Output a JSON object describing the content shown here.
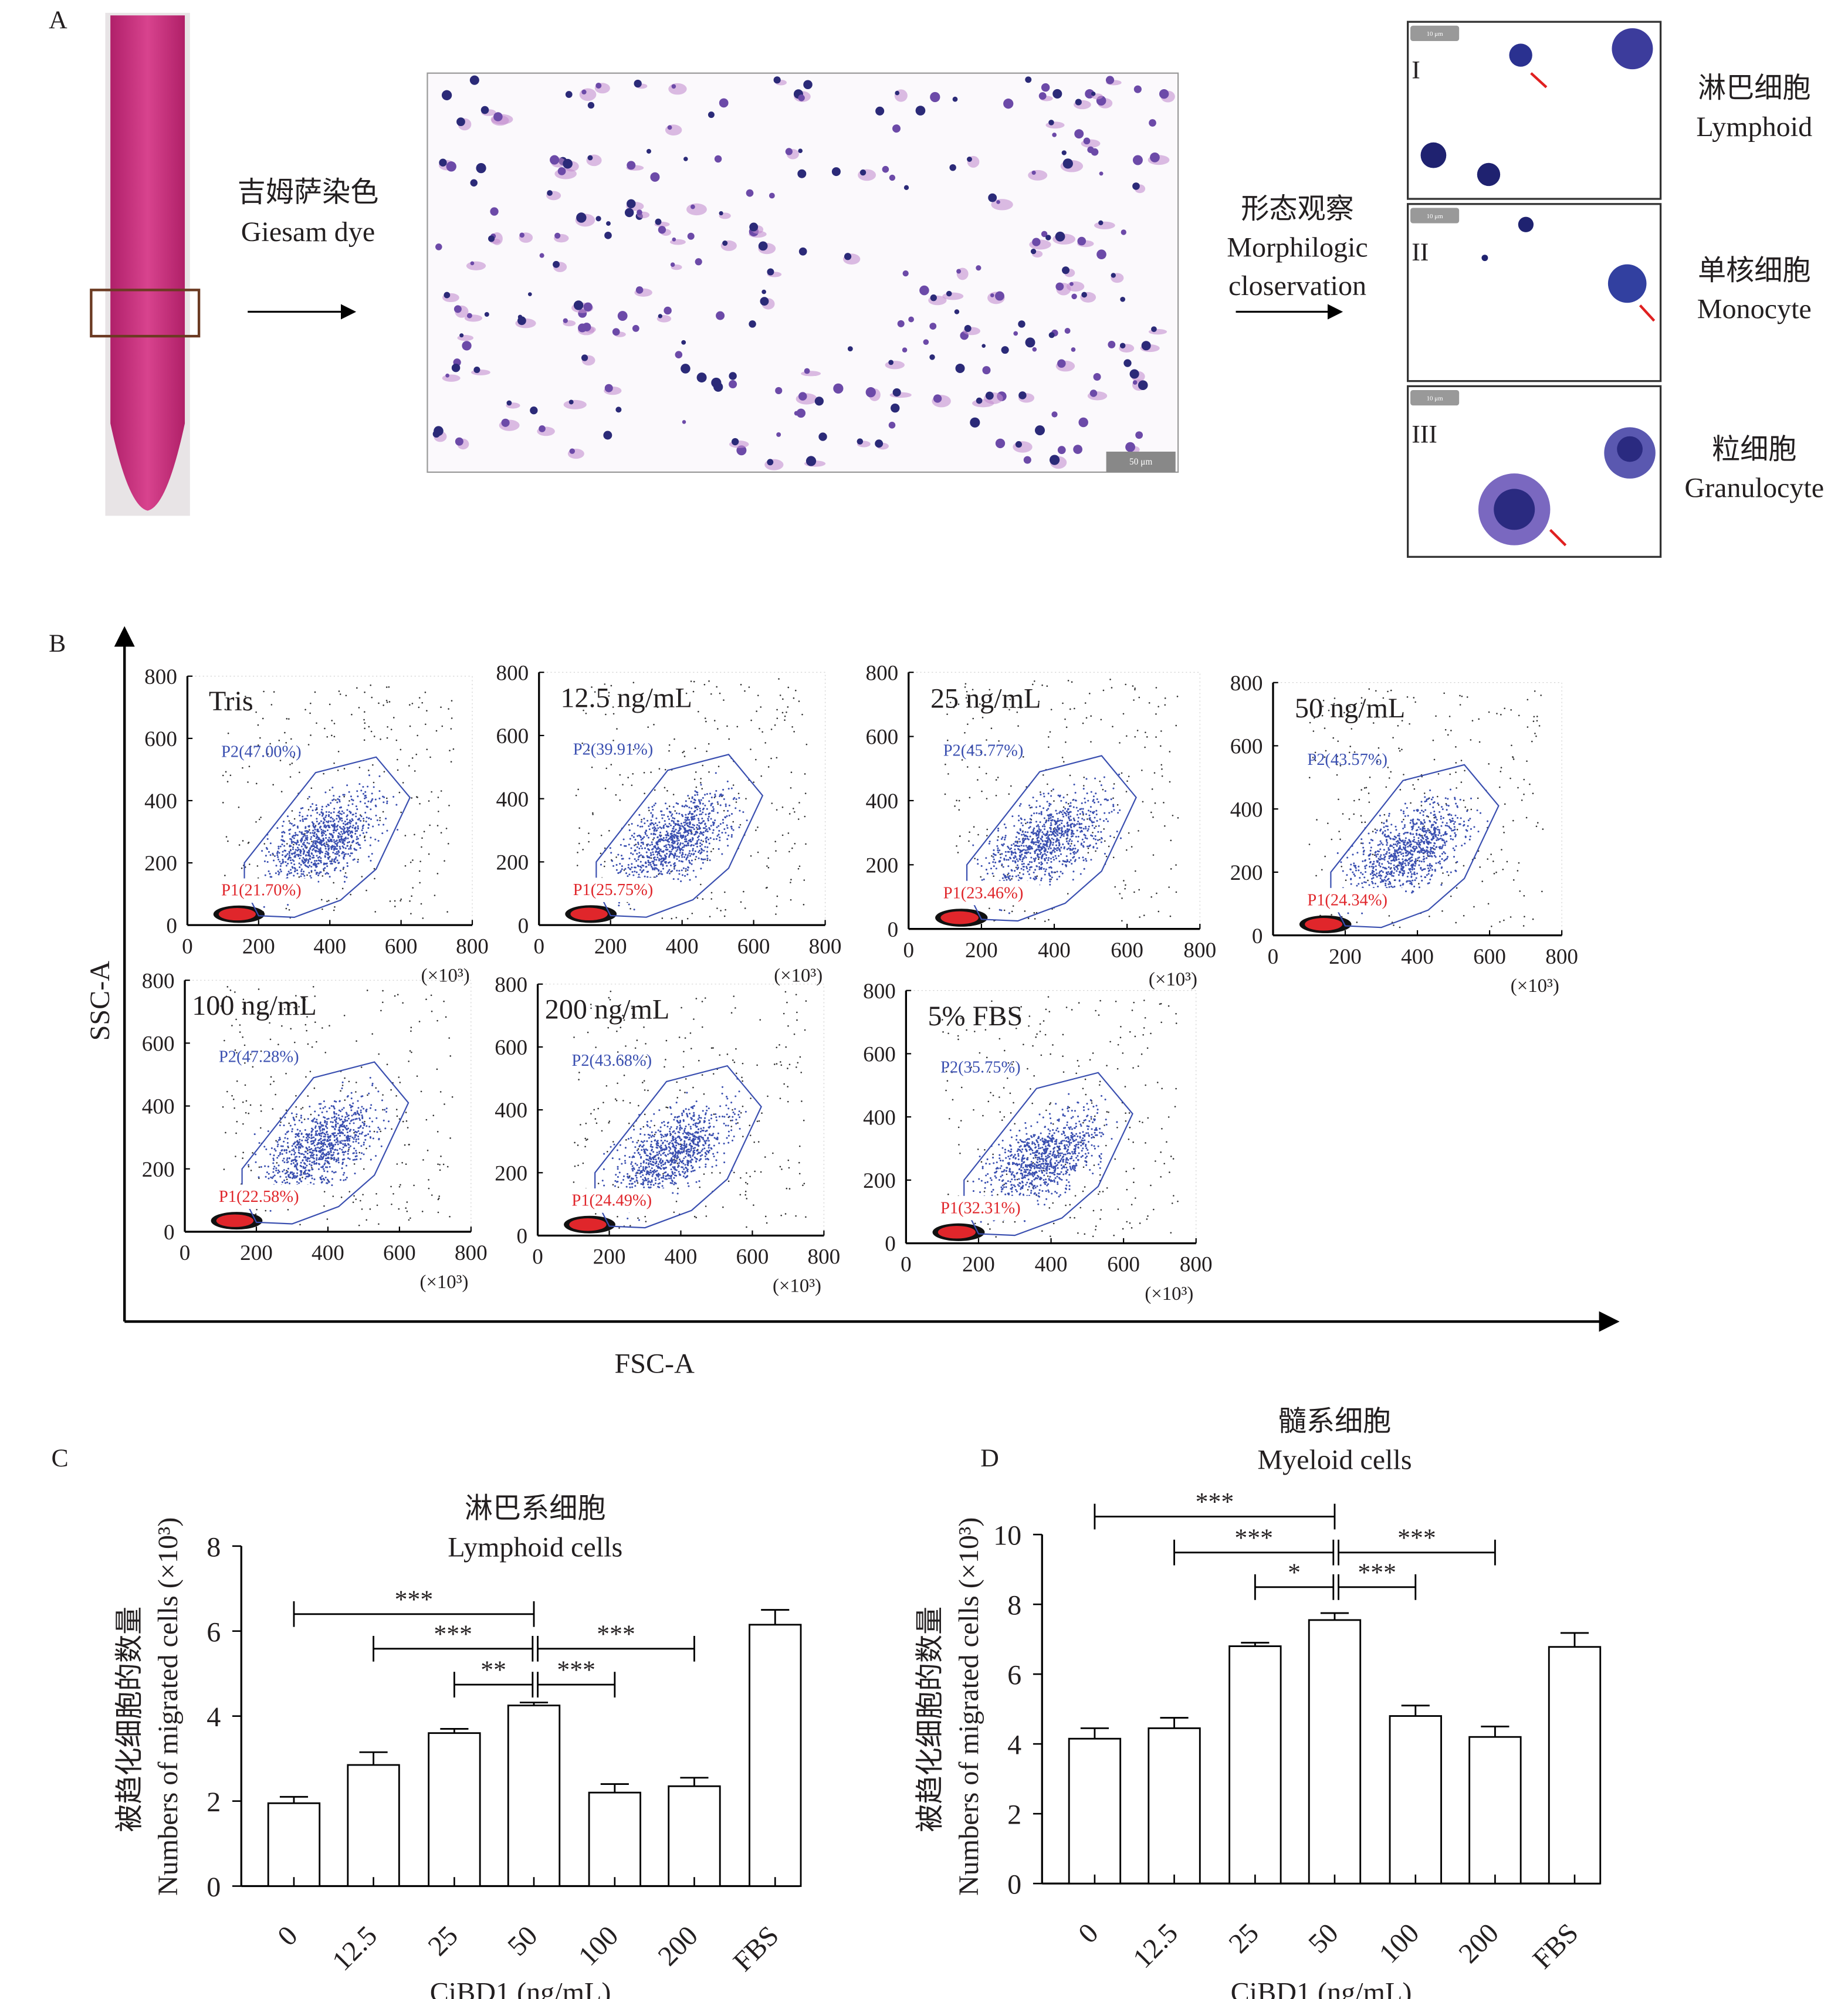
{
  "panel_a": {
    "letter": "A",
    "stain_cn": "吉姆萨染色",
    "stain_en": "Giesam dye",
    "micro_scale": "50 μm",
    "observe_cn": "形态观察",
    "observe_en1": "Morphilogic",
    "observe_en2": "closervation",
    "cells": [
      {
        "roman": "I",
        "cn": "淋巴细胞",
        "en": "Lymphoid",
        "scale": "10 μm"
      },
      {
        "roman": "II",
        "cn": "单核细胞",
        "en": "Monocyte",
        "scale": "10 μm"
      },
      {
        "roman": "III",
        "cn": "粒细胞",
        "en": "Granulocyte",
        "scale": "10 μm"
      }
    ]
  },
  "panel_b": {
    "letter": "B",
    "ylabel": "SSC-A",
    "xlabel": "FSC-A",
    "unit": "(×10³)",
    "ticks": [
      "0",
      "200",
      "400",
      "600",
      "800"
    ],
    "plots": [
      {
        "title": "Tris",
        "p2": "P2(47.00%)",
        "p1": "P1(21.70%)"
      },
      {
        "title": "12.5 ng/mL",
        "p2": "P2(39.91%)",
        "p1": "P1(25.75%)"
      },
      {
        "title": "25 ng/mL",
        "p2": "P2(45.77%)",
        "p1": "P1(23.46%)"
      },
      {
        "title": "50 ng/mL",
        "p2": "P2(43.57%)",
        "p1": "P1(24.34%)"
      },
      {
        "title": "100 ng/mL",
        "p2": "P2(47.28%)",
        "p1": "P1(22.58%)"
      },
      {
        "title": "200 ng/mL",
        "p2": "P2(43.68%)",
        "p1": "P1(24.49%)"
      },
      {
        "title": "5% FBS",
        "p2": "P2(35.75%)",
        "p1": "P1(32.31%)"
      }
    ],
    "colors": {
      "p1": "#e0262b",
      "p2": "#3a4fb0",
      "other": "#333333"
    }
  },
  "chart_data": [
    {
      "type": "bar",
      "letter": "C",
      "title_cn": "淋巴系细胞",
      "title": "Lymphoid cells",
      "ylabel_cn": "被趋化细胞的数量",
      "ylabel": "Numbers of migrated cells (×10³)",
      "xlabel": "CiBD1 (ng/mL)",
      "categories": [
        "0",
        "12.5",
        "25",
        "50",
        "100",
        "200",
        "FBS"
      ],
      "values": [
        1.95,
        2.85,
        3.6,
        4.25,
        2.2,
        2.35,
        6.15
      ],
      "errors": [
        0.15,
        0.3,
        0.1,
        0.07,
        0.2,
        0.2,
        0.35
      ],
      "ylim": [
        0,
        8
      ],
      "yticks": [
        "0",
        "2",
        "4",
        "6",
        "8"
      ],
      "significance": [
        {
          "from": 0,
          "to": 3,
          "label": "***",
          "level": 3
        },
        {
          "from": 1,
          "to": 3,
          "label": "***",
          "level": 2
        },
        {
          "from": 3,
          "to": 5,
          "label": "***",
          "level": 2
        },
        {
          "from": 2,
          "to": 3,
          "label": "**",
          "level": 1
        },
        {
          "from": 3,
          "to": 4,
          "label": "***",
          "level": 1
        }
      ]
    },
    {
      "type": "bar",
      "letter": "D",
      "title_cn": "髓系细胞",
      "title": "Myeloid cells",
      "ylabel_cn": "被趋化细胞的数量",
      "ylabel": "Numbers of migrated cells (×10³)",
      "xlabel": "CiBD1 (ng/mL)",
      "categories": [
        "0",
        "12.5",
        "25",
        "50",
        "100",
        "200",
        "FBS"
      ],
      "values": [
        4.15,
        4.45,
        6.8,
        7.55,
        4.8,
        4.2,
        6.78
      ],
      "errors": [
        0.3,
        0.3,
        0.1,
        0.2,
        0.3,
        0.3,
        0.4
      ],
      "ylim": [
        0,
        10
      ],
      "yticks": [
        "0",
        "2",
        "4",
        "6",
        "8",
        "10"
      ],
      "significance": [
        {
          "from": 0,
          "to": 3,
          "label": "***",
          "level": 3
        },
        {
          "from": 1,
          "to": 3,
          "label": "***",
          "level": 2
        },
        {
          "from": 3,
          "to": 5,
          "label": "***",
          "level": 2
        },
        {
          "from": 2,
          "to": 3,
          "label": "*",
          "level": 1
        },
        {
          "from": 3,
          "to": 4,
          "label": "***",
          "level": 1
        }
      ]
    }
  ]
}
